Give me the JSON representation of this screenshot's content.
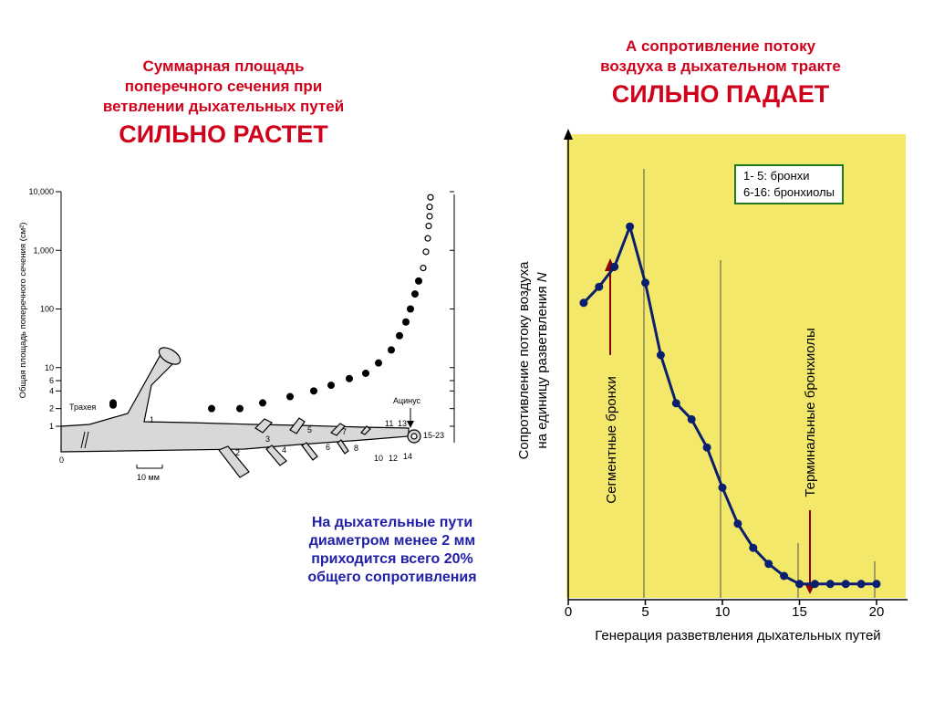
{
  "left_title": {
    "line1": "Суммарная площадь",
    "line2": "поперечного сечения при",
    "line3": "ветвлении дыхательных путей",
    "emphasis": "СИЛЬНО РАСТЕТ"
  },
  "right_title": {
    "line1": "А сопротивление потоку",
    "line2": "воздуха в дыхательном тракте",
    "emphasis": "СИЛЬНО ПАДАЕТ"
  },
  "note": {
    "line1": "На дыхательные пути",
    "line2": "диаметром менее 2 мм",
    "line3": "приходится всего 20%",
    "line4": "общего сопротивления"
  },
  "colors": {
    "title_red": "#d0021b",
    "note_blue": "#1f1fa8",
    "curve_navy": "#0a1f6e",
    "arrow_darkred": "#8b0000",
    "panel_yellow": "#f4e86a",
    "legend_green": "#1f7a1f"
  },
  "chart_data": [
    {
      "type": "scatter",
      "ylabel": "Общая площадь поперечного сечения (см²)",
      "y_scale": "log",
      "ylim": [
        1,
        10000
      ],
      "yticks": [
        "1",
        "2",
        "4",
        "6",
        "10",
        "100",
        "1,000",
        "10,000"
      ],
      "x": [
        0,
        1,
        2,
        3,
        4,
        5,
        6,
        7,
        8,
        9,
        10,
        11,
        12,
        13,
        14,
        15,
        16,
        17,
        18,
        19,
        20,
        21,
        22,
        23
      ],
      "values": [
        2.5,
        2.3,
        2.0,
        2.0,
        2.5,
        3.2,
        4.0,
        5.0,
        6.5,
        8.0,
        12,
        20,
        35,
        60,
        100,
        180,
        300,
        500,
        944,
        1600,
        2600,
        3800,
        5500,
        8000
      ],
      "filled_through_generation": 16,
      "open_from_generation": 17,
      "scale_bar": "10 мм",
      "airway_labels": {
        "trachea": "Трахея",
        "acinus": "Ацинус",
        "generations": [
          "0",
          "1",
          "2",
          "3",
          "4",
          "5",
          "6",
          "7",
          "8",
          "10",
          "11",
          "12",
          "13",
          "14",
          "15-23"
        ]
      }
    },
    {
      "type": "line",
      "xlabel": "Генерация разветвления дыхательных путей",
      "ylabel_line1": "Сопротивление потоку воздуха",
      "ylabel_line2": "на единицу разветвления",
      "ylabel_italic": "N",
      "xlim": [
        0,
        21.5
      ],
      "ylim": [
        0,
        1
      ],
      "xticks": [
        "0",
        "5",
        "10",
        "15",
        "20"
      ],
      "x": [
        1,
        2,
        3,
        4,
        5,
        6,
        7,
        8,
        9,
        10,
        11,
        12,
        13,
        14,
        15,
        16,
        17,
        18,
        19,
        20
      ],
      "values": [
        0.73,
        0.77,
        0.82,
        0.92,
        0.78,
        0.6,
        0.48,
        0.44,
        0.37,
        0.27,
        0.18,
        0.12,
        0.08,
        0.05,
        0.03,
        0.03,
        0.03,
        0.03,
        0.03,
        0.03
      ],
      "annotations": {
        "segmental_bronchi": "Сегментные бронхи",
        "terminal_bronchioles": "Терминальные бронхиолы"
      },
      "legend": [
        "1- 5: бронхи",
        "6-16: бронхиолы"
      ]
    }
  ]
}
